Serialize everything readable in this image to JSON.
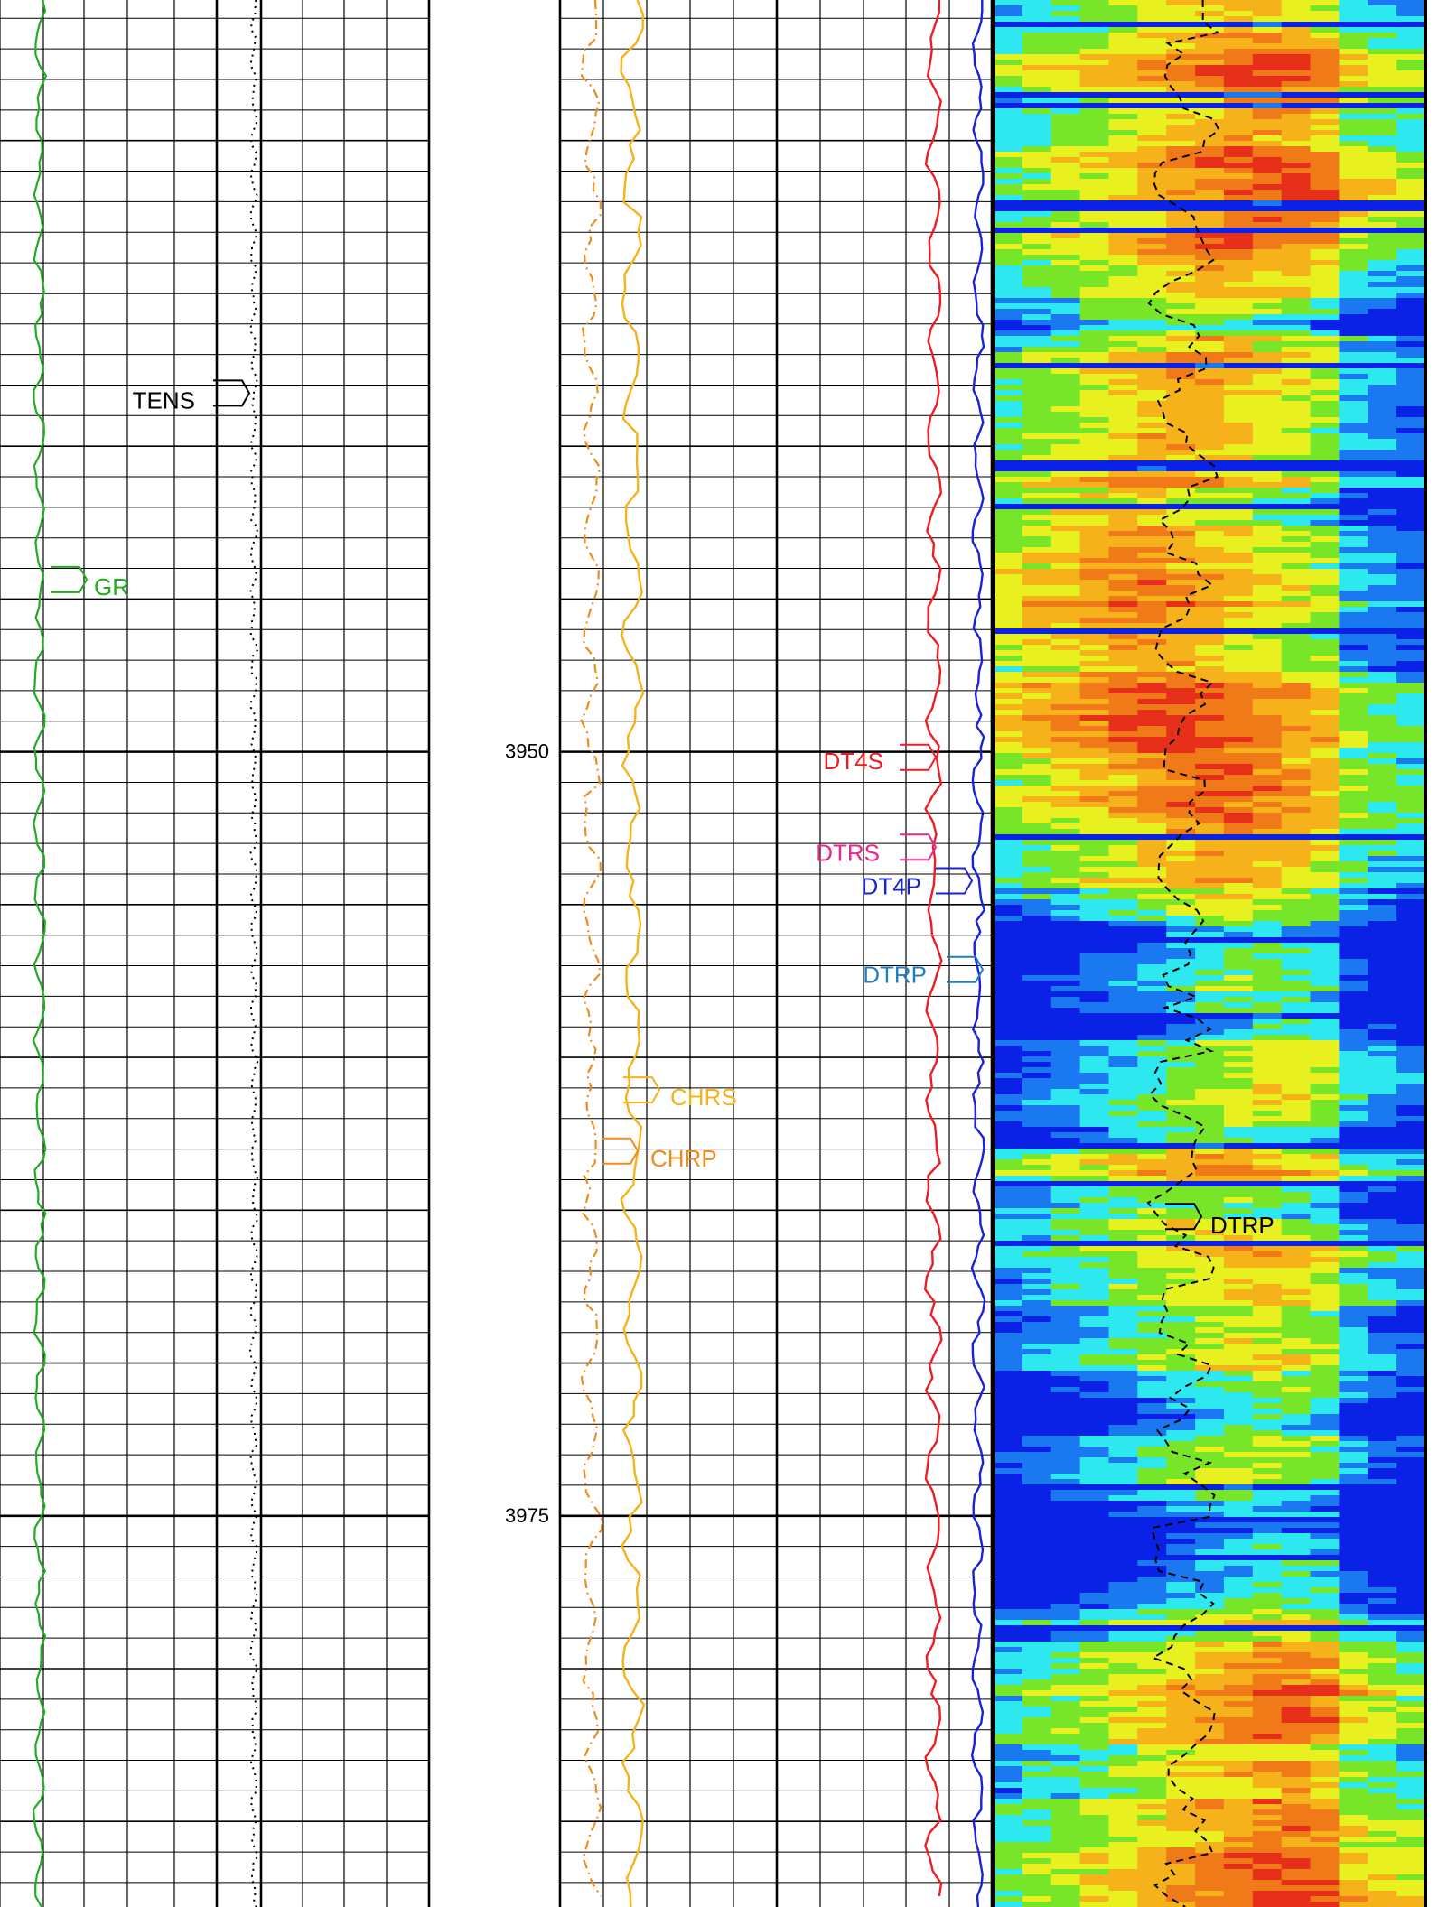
{
  "chart_data": {
    "type": "line",
    "title": "",
    "depth_axis": {
      "label": "",
      "range": [
        3925.4,
        3987.8
      ],
      "tick_labels": [
        "3950",
        "3975"
      ],
      "tick_values": [
        3950,
        3975
      ]
    },
    "grid": true,
    "tracks": [
      {
        "name": "track-1",
        "curves": [
          {
            "name": "GR",
            "color": "#1fae1f",
            "style": "solid",
            "label_depth": 3944.6
          },
          {
            "name": "TENS",
            "color": "#000000",
            "style": "dotted",
            "label_depth": 3938.5
          }
        ]
      },
      {
        "name": "track-2",
        "curves": [
          {
            "name": "DT4S",
            "color": "#ee1c24",
            "style": "solid",
            "label_depth": 3950.3
          },
          {
            "name": "DTRS",
            "color": "#e8288a",
            "style": "solid",
            "label_depth": 3953.3
          },
          {
            "name": "DT4P",
            "color": "#1a22d8",
            "style": "solid",
            "label_depth": 3954.4
          },
          {
            "name": "DTRP",
            "color": "#1f7fc0",
            "style": "solid",
            "label_depth": 3957.3
          },
          {
            "name": "CHRS",
            "color": "#f5b21a",
            "style": "solid",
            "label_depth": 3961.3
          },
          {
            "name": "CHRP",
            "color": "#f08c1a",
            "style": "dash-dot",
            "label_depth": 3963.3
          }
        ]
      },
      {
        "name": "track-3",
        "type": "heatmap",
        "colormap": [
          "#0a22e6",
          "#1a78f0",
          "#2ee8f0",
          "#78e628",
          "#e8f020",
          "#f5b21a",
          "#f07a18",
          "#e6301a"
        ],
        "overlay_curve": {
          "name": "DTRP",
          "color": "#000000",
          "style": "dashed",
          "label_depth": 3965.5
        }
      }
    ]
  }
}
